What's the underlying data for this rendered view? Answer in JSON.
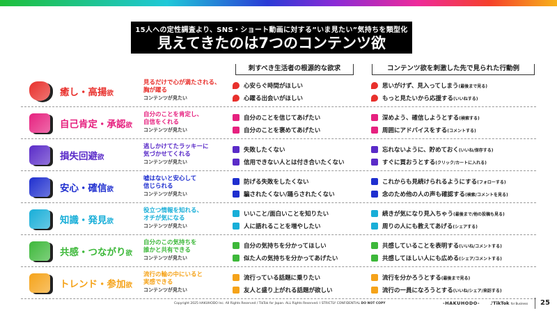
{
  "header": {
    "subtitle": "15人への定性調査より、SNS・ショート動画に対する”いま見たい”気持ちを類型化",
    "title": "見えてきたのは7つのコンテンツ欲"
  },
  "columns": {
    "needs": "刺すべき生活者の根源的な欲求",
    "actions": "コンテンツ欲を刺激した先で見られた行動例"
  },
  "caption": "コンテンツが見たい",
  "suffix": "欲",
  "rows": [
    {
      "name": "癒し・高揚",
      "color": "#e8302c",
      "icon": "heart-icon",
      "desc": [
        "見るだけで心が満たされる、",
        "胸が躍る"
      ],
      "needs": [
        "心安らぐ時間がほしい",
        "心躍る出会いがほしい"
      ],
      "actions": [
        [
          "思いがけず、見入ってしまう",
          "(最後まで見る)"
        ],
        [
          "もっと見たいから応援する",
          "(いいねする)"
        ]
      ]
    },
    {
      "name": "自己肯定・承認",
      "color": "#e6217f",
      "icon": "starburst-icon",
      "desc": [
        "自分のことを肯定し、",
        "自信をくれる"
      ],
      "needs": [
        "自分のことを信じてあげたい",
        "自分のことを褒めてあげたい"
      ],
      "actions": [
        [
          "深めよう、確信しようとする",
          "(検索する)"
        ],
        [
          "周囲にアドバイスをする",
          "(コメントする)"
        ]
      ]
    },
    {
      "name": "損失回避",
      "color": "#5a2bc8",
      "icon": "pinwheel-icon",
      "desc": [
        "逃しかけてたラッキーに",
        "気づかせてくれる"
      ],
      "needs": [
        "失敗したくない",
        "信用できない人とは付き合いたくない"
      ],
      "actions": [
        [
          "忘れないように、貯めておく",
          "(いいね/保存する)"
        ],
        [
          "すぐに買おうとする",
          "(クリック/カートに入れる)"
        ]
      ]
    },
    {
      "name": "安心・確信",
      "color": "#1f2fcf",
      "icon": "badge-icon",
      "desc": [
        "嘘はないと安心して",
        "信じられる"
      ],
      "needs": [
        "防げる失敗をしたくない",
        "騙されたくない/踊らされたくない"
      ],
      "actions": [
        [
          "これからも見続けられるようにする",
          "(フォローする)"
        ],
        [
          "念のため他の人の声も確認する",
          "(検索/コメントを見る)"
        ]
      ]
    },
    {
      "name": "知識・発見",
      "color": "#18aed8",
      "icon": "asterisk-icon",
      "desc": [
        "役立つ情報を知れる、",
        "オチが気になる"
      ],
      "needs": [
        "いいこと/面白いことを知りたい",
        "人に語れることを増やしたい"
      ],
      "actions": [
        [
          "続きが気になり見入ちゃう",
          "(最後まで/他の投稿も見る)"
        ],
        [
          "周りの人にも教えてあげる",
          "(シェアする)"
        ]
      ]
    },
    {
      "name": "共感・つながり",
      "color": "#3db83a",
      "icon": "double-chevron-icon",
      "desc": [
        "自分のこの気持ちを",
        "誰かと共有できる"
      ],
      "needs": [
        "自分の気持ちを分かってほしい",
        "似た人の気持ちを分かってあげたい"
      ],
      "actions": [
        [
          "共感していることを表明する",
          "(いいね/コメントする)"
        ],
        [
          "共感してほしい人にも広める",
          "(シェア/コメントする)"
        ]
      ]
    },
    {
      "name": "トレンド・参加",
      "color": "#f5a31a",
      "icon": "flower-icon",
      "desc": [
        "流行の輪の中にいると",
        "実感できる"
      ],
      "needs": [
        "流行っている話題に乗りたい",
        "友人と盛り上がれる話題が欲しい"
      ],
      "actions": [
        [
          "流行を分かろうとする",
          "(最後まで見る)"
        ],
        [
          "流行の一員になろうとする",
          "(いいね/シェア/来訪する)"
        ]
      ]
    }
  ],
  "footer": {
    "copyright": "Copyright 2025 HAKUHODO Inc. All Rights Reserved / TikTok for Japan. ALL Rights Reserved. I STRICTLY CONFIDENTIAL",
    "notice": "DO NOT COPY",
    "brand1": "-HAKUHODO-",
    "brand2": "TikTok",
    "brand2_sub": "for Business",
    "page": "25"
  }
}
